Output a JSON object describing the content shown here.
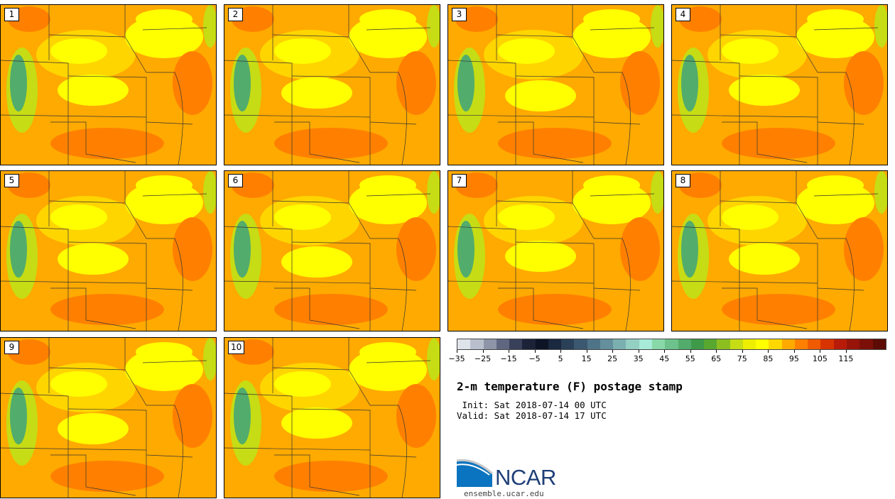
{
  "panels": [
    {
      "label": "1"
    },
    {
      "label": "2"
    },
    {
      "label": "3"
    },
    {
      "label": "4"
    },
    {
      "label": "5"
    },
    {
      "label": "6"
    },
    {
      "label": "7"
    },
    {
      "label": "8"
    },
    {
      "label": "9"
    },
    {
      "label": "10"
    }
  ],
  "colorbar": {
    "tick_labels": [
      "−35",
      "−25",
      "−15",
      "−5",
      "5",
      "15",
      "25",
      "35",
      "45",
      "55",
      "65",
      "75",
      "85",
      "95",
      "105",
      "115"
    ],
    "colors": [
      "#dfe3ea",
      "#b9bfcc",
      "#8e95a8",
      "#5f6780",
      "#39405a",
      "#1c2238",
      "#0d1426",
      "#1a2840",
      "#2a4058",
      "#3c5870",
      "#4f7488",
      "#64909e",
      "#7cb0b0",
      "#94cfc4",
      "#a8ead8",
      "#88d8a8",
      "#6cc28a",
      "#52ac6c",
      "#3e9a48",
      "#58a830",
      "#8cbe20",
      "#c6dc14",
      "#eeee00",
      "#ffff00",
      "#ffd800",
      "#ffaa00",
      "#ff8000",
      "#f05a00",
      "#d83400",
      "#b81c08",
      "#981408",
      "#7c1008",
      "#5c0c04"
    ]
  },
  "title": "2-m temperature (F) postage stamp",
  "init": " Init: Sat 2018-07-14 00 UTC",
  "valid": "Valid: Sat 2018-07-14 17 UTC",
  "logo": {
    "name": "NCAR",
    "url": "ensemble.ucar.edu"
  },
  "map_colors": {
    "base": "#ffaa00",
    "yellow": "#ffff00",
    "lightyellow": "#ffd500",
    "orange": "#ff8000",
    "green": "#52ac6c",
    "lightgreen": "#c6dc14"
  }
}
